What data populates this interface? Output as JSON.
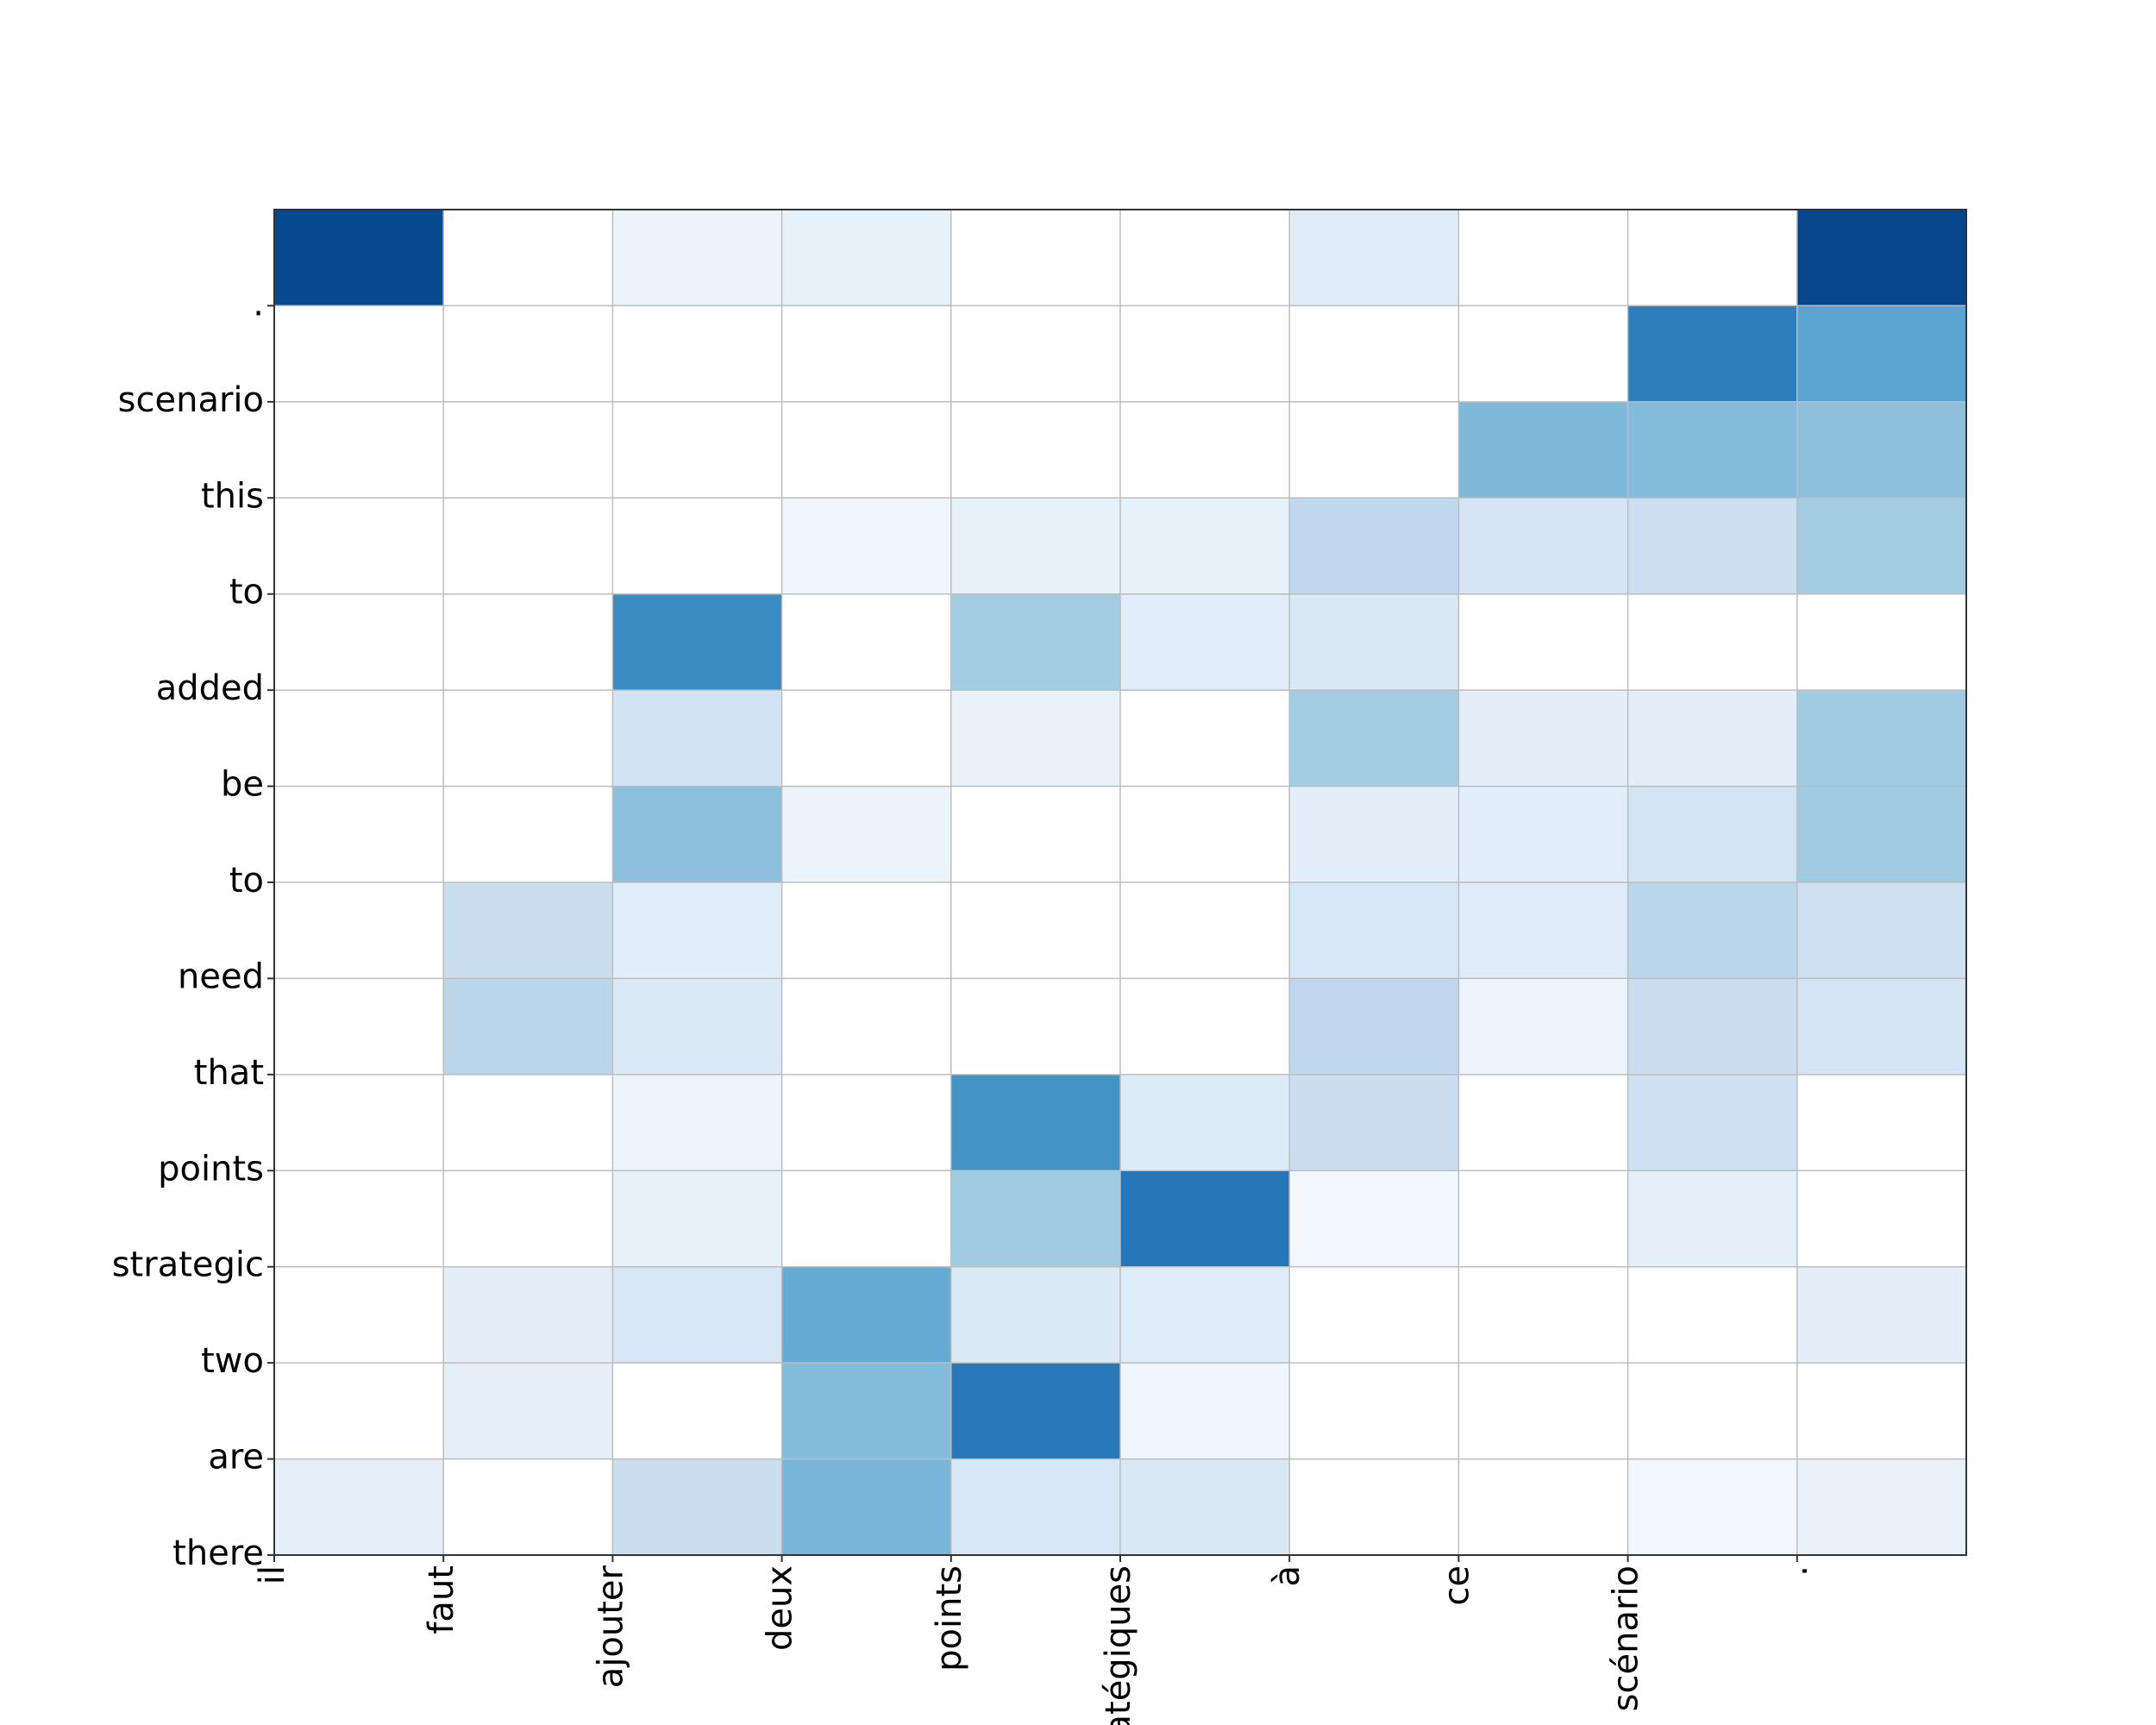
{
  "chart_data": {
    "type": "heatmap",
    "colormap": "Blues",
    "grid": true,
    "x_tick_labels": [
      "il",
      "faut",
      "ajouter",
      "deux",
      "points",
      "stratégiques",
      "à",
      "ce",
      "scénario",
      "."
    ],
    "y_tick_labels": [
      "there",
      "are",
      "two",
      "strategic",
      "points",
      "that",
      "need",
      "to",
      "be",
      "added",
      "to",
      "this",
      "scenario",
      "."
    ],
    "values": [
      [
        0.9,
        0.0,
        0.06,
        0.08,
        0.0,
        0.0,
        0.12,
        0.0,
        0.0,
        0.92
      ],
      [
        0.0,
        0.0,
        0.0,
        0.0,
        0.0,
        0.0,
        0.0,
        0.0,
        0.7,
        0.55
      ],
      [
        0.0,
        0.0,
        0.0,
        0.0,
        0.0,
        0.0,
        0.0,
        0.45,
        0.44,
        0.42
      ],
      [
        0.0,
        0.0,
        0.0,
        0.04,
        0.08,
        0.08,
        0.27,
        0.17,
        0.22,
        0.36
      ],
      [
        0.0,
        0.0,
        0.65,
        0.0,
        0.36,
        0.11,
        0.15,
        0.0,
        0.0,
        0.0
      ],
      [
        0.0,
        0.0,
        0.19,
        0.0,
        0.07,
        0.0,
        0.36,
        0.1,
        0.1,
        0.37
      ],
      [
        0.0,
        0.0,
        0.42,
        0.06,
        0.0,
        0.0,
        0.1,
        0.11,
        0.18,
        0.37
      ],
      [
        0.0,
        0.23,
        0.11,
        0.0,
        0.0,
        0.0,
        0.16,
        0.12,
        0.29,
        0.21
      ],
      [
        0.0,
        0.29,
        0.14,
        0.0,
        0.0,
        0.0,
        0.27,
        0.05,
        0.23,
        0.17
      ],
      [
        0.0,
        0.0,
        0.05,
        0.0,
        0.62,
        0.13,
        0.23,
        0.0,
        0.21,
        0.0
      ],
      [
        0.0,
        0.0,
        0.08,
        0.0,
        0.37,
        0.73,
        0.03,
        0.0,
        0.09,
        0.0
      ],
      [
        0.0,
        0.1,
        0.16,
        0.52,
        0.14,
        0.12,
        0.0,
        0.0,
        0.0,
        0.1
      ],
      [
        0.0,
        0.09,
        0.0,
        0.44,
        0.72,
        0.04,
        0.0,
        0.0,
        0.0,
        0.0
      ],
      [
        0.09,
        0.0,
        0.23,
        0.47,
        0.16,
        0.15,
        0.0,
        0.0,
        0.03,
        0.07
      ]
    ]
  }
}
